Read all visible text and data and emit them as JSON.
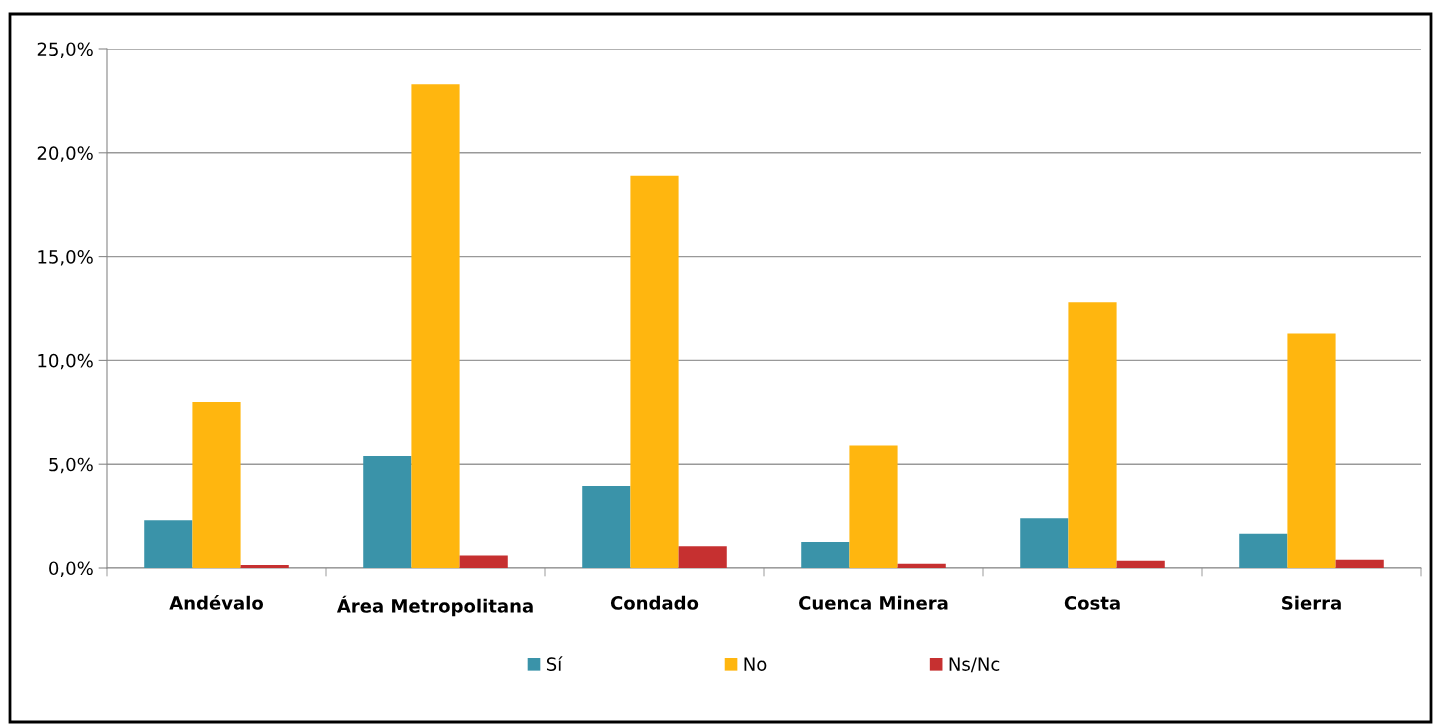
{
  "chart_data": {
    "type": "bar",
    "categories": [
      "Andévalo",
      "Área Metropolitana",
      "Condado",
      "Cuenca Minera",
      "Costa",
      "Sierra"
    ],
    "series": [
      {
        "name": "Sí",
        "color": "#3a93a9",
        "values": [
          2.3,
          5.4,
          3.95,
          1.25,
          2.4,
          1.65
        ]
      },
      {
        "name": "No",
        "color": "#ffb60f",
        "values": [
          8.0,
          23.3,
          18.9,
          5.9,
          12.8,
          11.3
        ]
      },
      {
        "name": "Ns/Nc",
        "color": "#c63030",
        "values": [
          0.15,
          0.6,
          1.05,
          0.2,
          0.35,
          0.4
        ]
      }
    ],
    "ylim": [
      0,
      25
    ],
    "yticks": [
      {
        "value": 0,
        "label": "0,0%"
      },
      {
        "value": 5,
        "label": "5,0%"
      },
      {
        "value": 10,
        "label": "10,0%"
      },
      {
        "value": 15,
        "label": "15,0%"
      },
      {
        "value": 20,
        "label": "20,0%"
      },
      {
        "value": 25,
        "label": "25,0%"
      }
    ],
    "grid": "y",
    "legend": "bottom"
  }
}
